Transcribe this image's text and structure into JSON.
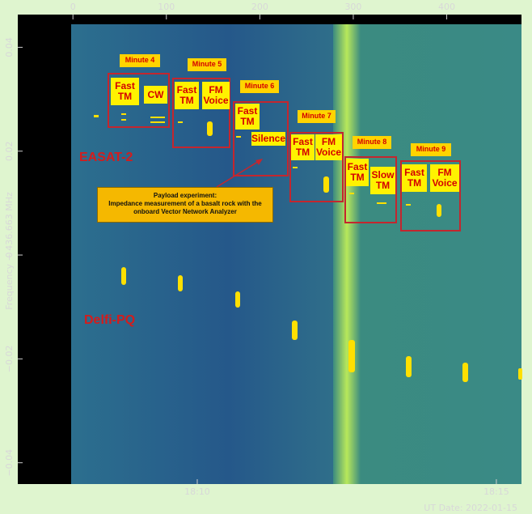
{
  "chart_data": {
    "type": "spectrogram",
    "ylabel": "Frequency − 436.663 MHz",
    "xlim": [
      -59,
      480
    ],
    "xticks": [
      0,
      100,
      200,
      300,
      400
    ],
    "ylim": [
      -0.0441,
      0.0463
    ],
    "yticks": [
      {
        "value": -0.04,
        "label": "−0.04"
      },
      {
        "value": -0.02,
        "label": "−0.02"
      },
      0,
      0.02,
      0.04
    ],
    "time_axis": {
      "lim": [
        7.0,
        15.42
      ],
      "ticks": [
        {
          "value": 10,
          "label": "18:10"
        },
        {
          "value": 15,
          "label": "18:15"
        }
      ]
    },
    "date_label": "UT Date: 2022-01-15",
    "satellites": [
      "EASAT-2",
      "Delfi-PQ"
    ],
    "payload": {
      "title": "Payload experiment:",
      "text": "Impedance measurement of a basalt rock with the onboard Vector Network Analyzer"
    },
    "minutes": [
      {
        "label": "Minute 4",
        "modes": [
          "Fast TM",
          "CW"
        ]
      },
      {
        "label": "Minute 5",
        "modes": [
          "Fast TM",
          "FM Voice"
        ]
      },
      {
        "label": "Minute 6",
        "modes": [
          "Fast TM",
          "Silence"
        ]
      },
      {
        "label": "Minute 7",
        "modes": [
          "Fast TM",
          "FM Voice"
        ]
      },
      {
        "label": "Minute 8",
        "modes": [
          "Fast TM",
          "Slow TM"
        ]
      },
      {
        "label": "Minute 9",
        "modes": [
          "Fast TM",
          "FM Voice"
        ]
      }
    ]
  }
}
